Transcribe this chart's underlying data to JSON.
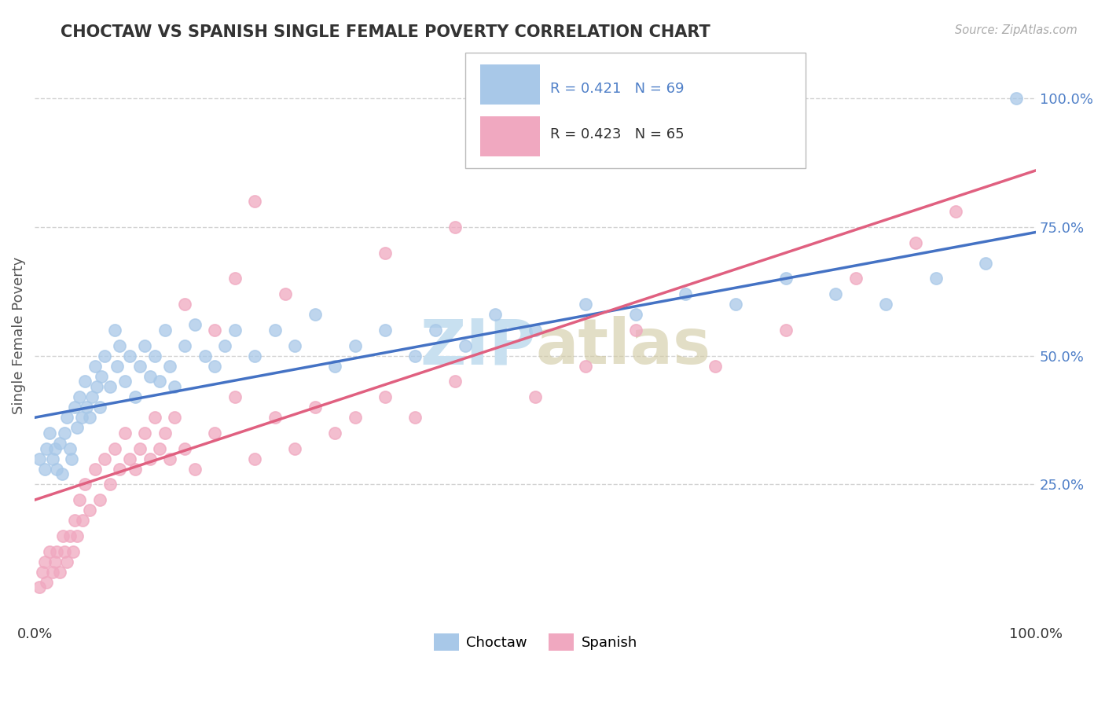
{
  "title": "CHOCTAW VS SPANISH SINGLE FEMALE POVERTY CORRELATION CHART",
  "source_text": "Source: ZipAtlas.com",
  "ylabel": "Single Female Poverty",
  "choctaw_color": "#a8c8e8",
  "spanish_color": "#f0a8c0",
  "choctaw_line_color": "#4472c4",
  "spanish_line_color": "#e06080",
  "watermark_color": "#c8e0f0",
  "background_color": "#ffffff",
  "grid_color": "#c8c8c8",
  "right_tick_color": "#5080c8",
  "xlim": [
    0.0,
    1.0
  ],
  "ylim": [
    -0.02,
    1.1
  ],
  "choctaw_x": [
    0.005,
    0.01,
    0.012,
    0.015,
    0.018,
    0.02,
    0.022,
    0.025,
    0.027,
    0.03,
    0.032,
    0.035,
    0.037,
    0.04,
    0.042,
    0.045,
    0.047,
    0.05,
    0.052,
    0.055,
    0.057,
    0.06,
    0.062,
    0.065,
    0.067,
    0.07,
    0.075,
    0.08,
    0.082,
    0.085,
    0.09,
    0.095,
    0.1,
    0.105,
    0.11,
    0.115,
    0.12,
    0.125,
    0.13,
    0.135,
    0.14,
    0.15,
    0.16,
    0.17,
    0.18,
    0.19,
    0.2,
    0.22,
    0.24,
    0.26,
    0.28,
    0.3,
    0.32,
    0.35,
    0.38,
    0.4,
    0.43,
    0.46,
    0.5,
    0.55,
    0.6,
    0.65,
    0.7,
    0.75,
    0.8,
    0.85,
    0.9,
    0.95,
    0.98
  ],
  "choctaw_y": [
    0.3,
    0.28,
    0.32,
    0.35,
    0.3,
    0.32,
    0.28,
    0.33,
    0.27,
    0.35,
    0.38,
    0.32,
    0.3,
    0.4,
    0.36,
    0.42,
    0.38,
    0.45,
    0.4,
    0.38,
    0.42,
    0.48,
    0.44,
    0.4,
    0.46,
    0.5,
    0.44,
    0.55,
    0.48,
    0.52,
    0.45,
    0.5,
    0.42,
    0.48,
    0.52,
    0.46,
    0.5,
    0.45,
    0.55,
    0.48,
    0.44,
    0.52,
    0.56,
    0.5,
    0.48,
    0.52,
    0.55,
    0.5,
    0.55,
    0.52,
    0.58,
    0.48,
    0.52,
    0.55,
    0.5,
    0.55,
    0.52,
    0.58,
    0.55,
    0.6,
    0.58,
    0.62,
    0.6,
    0.65,
    0.62,
    0.6,
    0.65,
    0.68,
    1.0
  ],
  "spanish_x": [
    0.005,
    0.008,
    0.01,
    0.012,
    0.015,
    0.018,
    0.02,
    0.022,
    0.025,
    0.028,
    0.03,
    0.032,
    0.035,
    0.038,
    0.04,
    0.042,
    0.045,
    0.048,
    0.05,
    0.055,
    0.06,
    0.065,
    0.07,
    0.075,
    0.08,
    0.085,
    0.09,
    0.095,
    0.1,
    0.105,
    0.11,
    0.115,
    0.12,
    0.125,
    0.13,
    0.135,
    0.14,
    0.15,
    0.16,
    0.18,
    0.2,
    0.22,
    0.24,
    0.26,
    0.28,
    0.3,
    0.32,
    0.35,
    0.38,
    0.42,
    0.5,
    0.55,
    0.6,
    0.68,
    0.75,
    0.82,
    0.88,
    0.92,
    0.22,
    0.15,
    0.18,
    0.2,
    0.25,
    0.35,
    0.42
  ],
  "spanish_y": [
    0.05,
    0.08,
    0.1,
    0.06,
    0.12,
    0.08,
    0.1,
    0.12,
    0.08,
    0.15,
    0.12,
    0.1,
    0.15,
    0.12,
    0.18,
    0.15,
    0.22,
    0.18,
    0.25,
    0.2,
    0.28,
    0.22,
    0.3,
    0.25,
    0.32,
    0.28,
    0.35,
    0.3,
    0.28,
    0.32,
    0.35,
    0.3,
    0.38,
    0.32,
    0.35,
    0.3,
    0.38,
    0.32,
    0.28,
    0.35,
    0.42,
    0.3,
    0.38,
    0.32,
    0.4,
    0.35,
    0.38,
    0.42,
    0.38,
    0.45,
    0.42,
    0.48,
    0.55,
    0.48,
    0.55,
    0.65,
    0.72,
    0.78,
    0.8,
    0.6,
    0.55,
    0.65,
    0.62,
    0.7,
    0.75
  ],
  "choctaw_line_start_y": 0.38,
  "choctaw_line_end_y": 0.74,
  "spanish_line_start_y": 0.22,
  "spanish_line_end_y": 0.86
}
